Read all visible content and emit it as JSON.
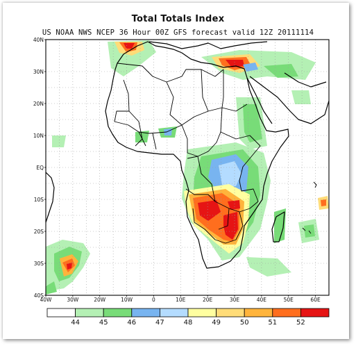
{
  "title": "Total Totals Index",
  "subtitle": "US NOAA NWS NCEP 36 Hour 00Z GFS forecast valid 12Z 20111114",
  "lat_labels": [
    "40N",
    "30N",
    "20N",
    "10N",
    "EQ",
    "10S",
    "20S",
    "30S",
    "40S"
  ],
  "lon_labels": [
    "40W",
    "30W",
    "20W",
    "10W",
    "0",
    "10E",
    "20E",
    "30E",
    "40E",
    "50E",
    "60E"
  ],
  "legend": {
    "labels": [
      "44",
      "45",
      "46",
      "47",
      "48",
      "49",
      "50",
      "51",
      "52"
    ],
    "colors": [
      "#ffffff",
      "#b4f0b4",
      "#78dc78",
      "#78b4f0",
      "#b4dcff",
      "#ffffa0",
      "#ffdc78",
      "#ffb43c",
      "#ff6e1e",
      "#e61414"
    ]
  },
  "map": {
    "extent": {
      "lon_min": -40,
      "lon_max": 65,
      "lat_min": -40,
      "lat_max": 40
    },
    "grid": "dotted",
    "high_index_regions": [
      "Southern Africa (Angola-Zambia-Zimbabwe)",
      "North Africa / Eastern Mediterranean coast",
      "Northwest Africa (Morocco-Algeria)",
      "South Atlantic off South America"
    ]
  }
}
